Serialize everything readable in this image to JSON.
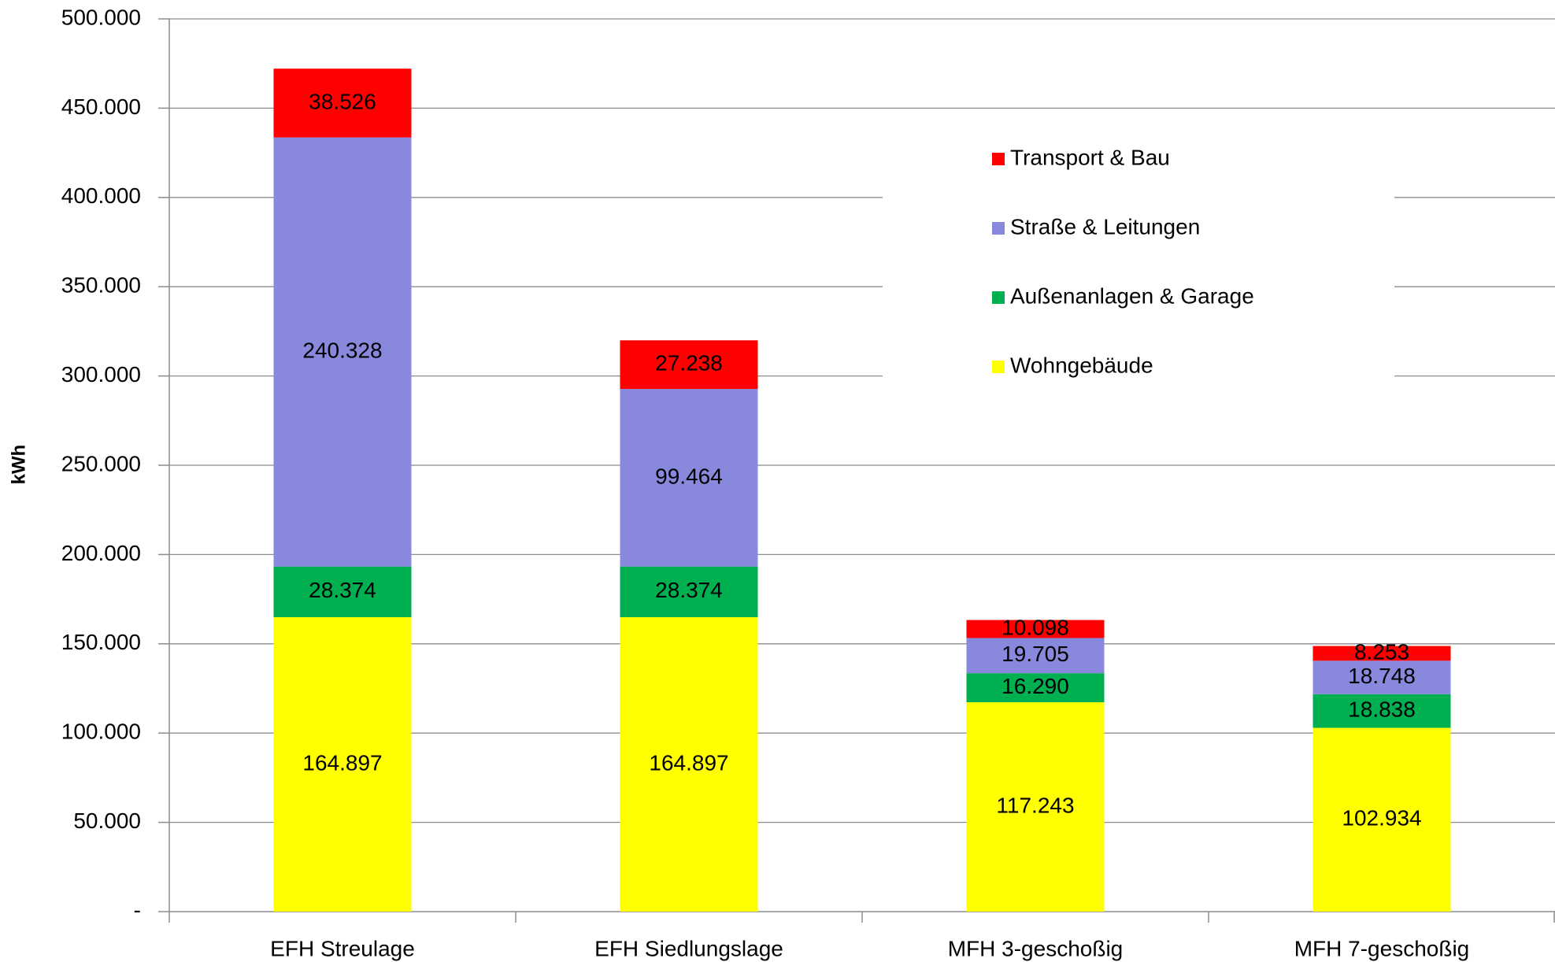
{
  "chart_data": {
    "type": "stacked_bar",
    "y_label": "kWh",
    "categories": [
      "EFH Streulage",
      "EFH Siedlungslage",
      "MFH 3-geschoßig",
      "MFH 7-geschoßig"
    ],
    "series": [
      {
        "name": "Wohngebäude",
        "color": "#ffff00",
        "values": [
          164897,
          164897,
          117243,
          102934
        ],
        "value_labels": [
          "164.897",
          "164.897",
          "117.243",
          "102.934"
        ]
      },
      {
        "name": "Außenanlagen & Garage",
        "color": "#00b050",
        "values": [
          28374,
          28374,
          16290,
          18838
        ],
        "value_labels": [
          "28.374",
          "28.374",
          "16.290",
          "18.838"
        ]
      },
      {
        "name": "Straße & Leitungen",
        "color": "#8888dd",
        "values": [
          240328,
          99464,
          19705,
          18748
        ],
        "value_labels": [
          "240.328",
          "99.464",
          "19.705",
          "18.748"
        ]
      },
      {
        "name": "Transport & Bau",
        "color": "#ff0000",
        "values": [
          38526,
          27238,
          10098,
          8253
        ],
        "value_labels": [
          "38.526",
          "27.238",
          "10.098",
          "8.253"
        ]
      }
    ],
    "ylim": [
      0,
      500000
    ],
    "yticks": [
      {
        "value": 0,
        "label": "-"
      },
      {
        "value": 50000,
        "label": "50.000"
      },
      {
        "value": 100000,
        "label": "100.000"
      },
      {
        "value": 150000,
        "label": "150.000"
      },
      {
        "value": 200000,
        "label": "200.000"
      },
      {
        "value": 250000,
        "label": "250.000"
      },
      {
        "value": 300000,
        "label": "300.000"
      },
      {
        "value": 350000,
        "label": "350.000"
      },
      {
        "value": 400000,
        "label": "400.000"
      },
      {
        "value": 450000,
        "label": "450.000"
      },
      {
        "value": 500000,
        "label": "500.000"
      }
    ],
    "grid": true,
    "legend": "right"
  }
}
